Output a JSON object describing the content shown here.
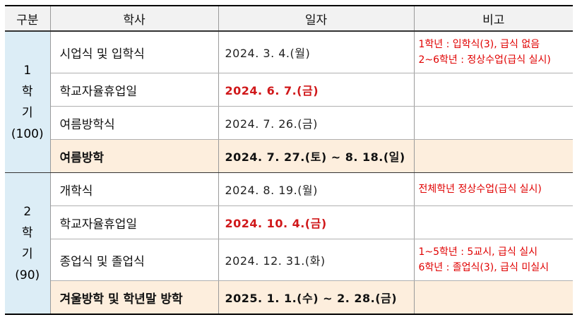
{
  "headers": {
    "semester": "구분",
    "event": "학사",
    "date": "일자",
    "note": "비고"
  },
  "semester1": {
    "num": "1",
    "hak": "학",
    "gi": "기",
    "days": "(100)"
  },
  "semester2": {
    "num": "2",
    "hak": "학",
    "gi": "기",
    "days": "(90)"
  },
  "rows": [
    {
      "event": "시업식 및 입학식",
      "date": "2024.  3.  4.(월)",
      "note1": "1학년 : 입학식(3), 급식 없음",
      "note2": "2~6학년 : 정상수업(급식 실시)"
    },
    {
      "event": "학교자율휴업일",
      "date": "2024.  6.  7.(금)",
      "note1": "",
      "note2": ""
    },
    {
      "event": "여름방학식",
      "date": "2024.  7. 26.(금)",
      "note1": "",
      "note2": ""
    },
    {
      "event": "여름방학",
      "date": "2024.  7. 27.(토) ~ 8. 18.(일)",
      "note1": "",
      "note2": ""
    },
    {
      "event": "개학식",
      "date": "2024.  8. 19.(월)",
      "note1": "전체학년 정상수업(급식 실시)",
      "note2": ""
    },
    {
      "event": "학교자율휴업일",
      "date": "2024. 10.  4.(금)",
      "note1": "",
      "note2": ""
    },
    {
      "event": "종업식 및 졸업식",
      "date": "2024. 12. 31.(화)",
      "note1": "1~5학년 : 5교시, 급식 실시",
      "note2": "6학년 : 졸업식(3), 급식 미실시"
    },
    {
      "event": "겨울방학 및 학년말 방학",
      "date": "2025.  1.  1.(수) ~ 2. 28.(금)",
      "note1": "",
      "note2": ""
    }
  ],
  "colors": {
    "header_bg": "#f2f2f2",
    "semester_bg": "#dcedf6",
    "vacation_bg": "#fdeedd",
    "note_red": "#e00000"
  }
}
